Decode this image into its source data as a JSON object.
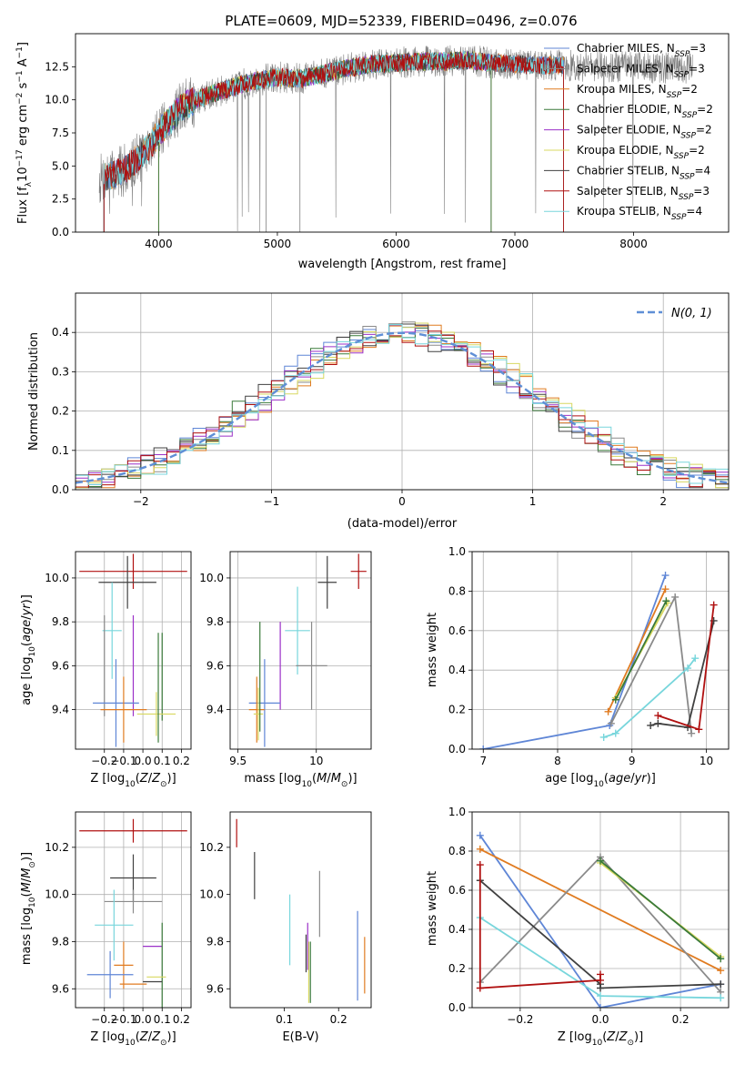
{
  "figure_title": "PLATE=0609, MJD=52339, FIBERID=0496, z=0.076",
  "colors": {
    "Chabrier MILES": "#5f86d6",
    "Salpeter MILES": "#8a8a8a",
    "Kroupa MILES": "#e07b20",
    "Chabrier ELODIE": "#3a7a3a",
    "Salpeter ELODIE": "#9b30c8",
    "Kroupa ELODIE": "#d8d860",
    "Chabrier STELIB": "#404040",
    "Salpeter STELIB": "#b01010",
    "Kroupa STELIB": "#78d6dc"
  },
  "chart_data": [
    {
      "id": "spectrum",
      "type": "line",
      "title": "PLATE=0609, MJD=52339, FIBERID=0496, z=0.076",
      "xlabel": "wavelength [Angstrom, rest frame]",
      "ylabel": "Flux [f_λ 10^-17 erg cm^-2 s^-1 A^-1]",
      "xlim": [
        3300,
        8800
      ],
      "ylim": [
        0,
        15
      ],
      "xticks": [
        4000,
        5000,
        6000,
        7000,
        8000
      ],
      "yticks": [
        0.0,
        2.5,
        5.0,
        7.5,
        10.0,
        12.5
      ],
      "legend": "right",
      "legend_entries": [
        {
          "base": "Chabrier MILES, N",
          "sub": "SSP",
          "tail": "=3"
        },
        {
          "base": "Salpeter MILES, N",
          "sub": "SSP",
          "tail": "=3"
        },
        {
          "base": "Kroupa MILES, N",
          "sub": "SSP",
          "tail": "=2"
        },
        {
          "base": "Chabrier ELODIE, N",
          "sub": "SSP",
          "tail": "=2"
        },
        {
          "base": "Salpeter ELODIE, N",
          "sub": "SSP",
          "tail": "=2"
        },
        {
          "base": "Kroupa ELODIE, N",
          "sub": "SSP",
          "tail": "=2"
        },
        {
          "base": "Chabrier STELIB, N",
          "sub": "SSP",
          "tail": "=4"
        },
        {
          "base": "Salpeter STELIB, N",
          "sub": "SSP",
          "tail": "=3"
        },
        {
          "base": "Kroupa STELIB, N",
          "sub": "SSP",
          "tail": "=4"
        }
      ],
      "continuum": {
        "wavelength": [
          3500,
          3700,
          3900,
          4000,
          4200,
          4400,
          4600,
          4800,
          5000,
          5200,
          5400,
          5600,
          5800,
          6000,
          6200,
          6400,
          6600,
          6800,
          7000,
          7200,
          7400
        ],
        "flux": [
          4.0,
          4.6,
          6.2,
          7.5,
          9.5,
          10.3,
          10.9,
          11.4,
          11.7,
          11.6,
          12.0,
          12.4,
          12.7,
          12.8,
          12.9,
          12.9,
          13.0,
          12.8,
          12.7,
          12.6,
          12.6
        ]
      },
      "data_extent": [
        3500,
        8500
      ],
      "model_extents": {
        "Chabrier MILES": [
          3540,
          7410
        ],
        "Salpeter MILES": [
          3540,
          7410
        ],
        "Kroupa MILES": [
          3540,
          7410
        ],
        "Salpeter STELIB": [
          3540,
          7410
        ],
        "Kroupa STELIB": [
          3540,
          7410
        ],
        "Chabrier ELODIE": [
          4000,
          6800
        ],
        "Salpeter ELODIE": [
          4000,
          6800
        ],
        "Kroupa ELODIE": [
          4000,
          6800
        ],
        "Chabrier STELIB": [
          3540,
          7410
        ]
      }
    },
    {
      "id": "residuals",
      "type": "line",
      "xlabel": "(data-model)/error",
      "ylabel": "Normed distribution",
      "xlim": [
        -2.5,
        2.5
      ],
      "ylim": [
        0,
        0.5
      ],
      "xticks": [
        -2,
        -1,
        0,
        1,
        2
      ],
      "xtick_labels": [
        "−2",
        "−1",
        "0",
        "1",
        "2"
      ],
      "yticks": [
        0.0,
        0.1,
        0.2,
        0.3,
        0.4
      ],
      "grid": true,
      "legend": "top-right",
      "gaussian_label": "N(0, 1)",
      "bin_width": 0.1
    },
    {
      "id": "age-vs-z",
      "type": "scatter",
      "xlabel": "Z [log10(Z/Z⊙)]",
      "ylabel": "age [log10(age/yr)]",
      "xlim": [
        -0.35,
        0.25
      ],
      "ylim": [
        9.22,
        10.12
      ],
      "xticks": [
        -0.2,
        -0.1,
        0.0,
        0.1,
        0.2
      ],
      "xtick_labels": [
        "−0.2",
        "−0.1",
        "0.0",
        "0.1",
        "0.2"
      ],
      "yticks": [
        9.4,
        9.6,
        9.8,
        10.0
      ],
      "grid": true,
      "points": [
        {
          "model": "Salpeter STELIB",
          "x": -0.05,
          "xerr": 0.28,
          "y": 10.03,
          "yerr": 0.08
        },
        {
          "model": "Chabrier STELIB",
          "x": -0.08,
          "xerr": 0.15,
          "y": 9.98,
          "yerr": 0.12
        },
        {
          "model": "Kroupa STELIB",
          "x": -0.16,
          "xerr": 0.05,
          "y": 9.76,
          "yerr": 0.22
        },
        {
          "model": "Chabrier ELODIE",
          "x": 0.1,
          "xerr": 0.0,
          "y": 9.55,
          "yerr": 0.2
        },
        {
          "model": "Kroupa ELODIE",
          "x": 0.07,
          "xerr": 0.1,
          "y": 9.38,
          "yerr": 0.1
        },
        {
          "model": "Salpeter MILES",
          "x": -0.2,
          "xerr": 0.0,
          "y": 9.6,
          "yerr": 0.23
        },
        {
          "model": "Salpeter ELODIE",
          "x": -0.05,
          "xerr": 0.0,
          "y": 9.6,
          "yerr": 0.23
        },
        {
          "model": "Chabrier MILES",
          "x": -0.14,
          "xerr": 0.12,
          "y": 9.43,
          "yerr": 0.2
        },
        {
          "model": "Kroupa MILES",
          "x": -0.1,
          "xerr": 0.12,
          "y": 9.4,
          "yerr": 0.15
        },
        {
          "model": "Chabrier ELODIE",
          "x": 0.08,
          "xerr": 0.0,
          "y": 9.5,
          "yerr": 0.25
        }
      ]
    },
    {
      "id": "age-vs-mass",
      "type": "scatter",
      "xlabel": "mass [log10(M/M⊙)]",
      "xlim": [
        9.45,
        10.35
      ],
      "ylim": [
        9.22,
        10.12
      ],
      "xticks": [
        9.5,
        10.0
      ],
      "yticks": [
        9.4,
        9.6,
        9.8,
        10.0
      ],
      "grid": true,
      "points": [
        {
          "model": "Salpeter STELIB",
          "x": 10.27,
          "xerr": 0.05,
          "y": 10.03,
          "yerr": 0.08
        },
        {
          "model": "Chabrier STELIB",
          "x": 10.07,
          "xerr": 0.06,
          "y": 9.98,
          "yerr": 0.12
        },
        {
          "model": "Kroupa STELIB",
          "x": 9.88,
          "xerr": 0.08,
          "y": 9.76,
          "yerr": 0.2
        },
        {
          "model": "Salpeter MILES",
          "x": 9.97,
          "xerr": 0.1,
          "y": 9.6,
          "yerr": 0.2
        },
        {
          "model": "Salpeter ELODIE",
          "x": 9.77,
          "xerr": 0.0,
          "y": 9.6,
          "yerr": 0.2
        },
        {
          "model": "Chabrier MILES",
          "x": 9.67,
          "xerr": 0.1,
          "y": 9.43,
          "yerr": 0.2
        },
        {
          "model": "Kroupa MILES",
          "x": 9.62,
          "xerr": 0.05,
          "y": 9.4,
          "yerr": 0.15
        },
        {
          "model": "Kroupa ELODIE",
          "x": 9.63,
          "xerr": 0.03,
          "y": 9.38,
          "yerr": 0.12
        },
        {
          "model": "Chabrier ELODIE",
          "x": 9.64,
          "xerr": 0.0,
          "y": 9.55,
          "yerr": 0.25
        }
      ]
    },
    {
      "id": "weight-vs-age",
      "type": "line",
      "xlabel": "age [log10(age/yr)]",
      "ylabel": "mass weight",
      "xlim": [
        6.85,
        10.3
      ],
      "ylim": [
        0,
        1.0
      ],
      "xticks": [
        7,
        8,
        9,
        10
      ],
      "yticks": [
        0.0,
        0.2,
        0.4,
        0.6,
        0.8,
        1.0
      ],
      "grid": true,
      "series": [
        {
          "model": "Chabrier MILES",
          "x": [
            7.0,
            8.7,
            9.45
          ],
          "y": [
            0.0,
            0.12,
            0.88
          ]
        },
        {
          "model": "Kroupa MILES",
          "x": [
            8.68,
            9.45
          ],
          "y": [
            0.19,
            0.81
          ]
        },
        {
          "model": "Kroupa ELODIE",
          "x": [
            8.78,
            9.48
          ],
          "y": [
            0.26,
            0.74
          ]
        },
        {
          "model": "Chabrier ELODIE",
          "x": [
            8.78,
            9.46
          ],
          "y": [
            0.25,
            0.75
          ]
        },
        {
          "model": "Salpeter MILES",
          "x": [
            8.72,
            9.58,
            9.8
          ],
          "y": [
            0.13,
            0.77,
            0.08
          ]
        },
        {
          "model": "Kroupa STELIB",
          "x": [
            8.62,
            8.78,
            9.75,
            9.85
          ],
          "y": [
            0.06,
            0.08,
            0.41,
            0.46
          ]
        },
        {
          "model": "Chabrier STELIB",
          "x": [
            9.25,
            9.35,
            9.75,
            10.1
          ],
          "y": [
            0.12,
            0.13,
            0.11,
            0.65
          ]
        },
        {
          "model": "Salpeter STELIB",
          "x": [
            9.35,
            9.9,
            10.1
          ],
          "y": [
            0.17,
            0.1,
            0.73
          ]
        }
      ]
    },
    {
      "id": "mass-vs-z",
      "type": "scatter",
      "xlabel": "Z [log10(Z/Z⊙)]",
      "ylabel": "mass [log10(M/M⊙)]",
      "xlim": [
        -0.35,
        0.25
      ],
      "ylim": [
        9.52,
        10.35
      ],
      "xticks": [
        -0.2,
        -0.1,
        0.0,
        0.1,
        0.2
      ],
      "xtick_labels": [
        "−0.2",
        "−0.1",
        "0.0",
        "0.1",
        "0.2"
      ],
      "yticks": [
        9.6,
        9.8,
        10.0,
        10.2
      ],
      "grid": true,
      "points": [
        {
          "model": "Salpeter STELIB",
          "x": -0.05,
          "xerr": 0.28,
          "y": 10.27,
          "yerr": 0.05
        },
        {
          "model": "Chabrier STELIB",
          "x": -0.05,
          "xerr": 0.12,
          "y": 10.07,
          "yerr": 0.1
        },
        {
          "model": "Salpeter MILES",
          "x": -0.05,
          "xerr": 0.15,
          "y": 9.97,
          "yerr": 0.05
        },
        {
          "model": "Kroupa STELIB",
          "x": -0.15,
          "xerr": 0.1,
          "y": 9.87,
          "yerr": 0.15
        },
        {
          "model": "Salpeter ELODIE",
          "x": 0.05,
          "xerr": 0.05,
          "y": 9.78,
          "yerr": 0.0
        },
        {
          "model": "Chabrier ELODIE",
          "x": 0.1,
          "xerr": 0.0,
          "y": 9.7,
          "yerr": 0.18
        },
        {
          "model": "Kroupa MILES",
          "x": -0.1,
          "xerr": 0.05,
          "y": 9.7,
          "yerr": 0.1
        },
        {
          "model": "Chabrier MILES",
          "x": -0.17,
          "xerr": 0.12,
          "y": 9.66,
          "yerr": 0.1
        },
        {
          "model": "Kroupa ELODIE",
          "x": 0.07,
          "xerr": 0.05,
          "y": 9.65,
          "yerr": 0.0
        },
        {
          "model": "Kroupa MILES",
          "x": -0.05,
          "xerr": 0.07,
          "y": 9.62,
          "yerr": 0.0
        },
        {
          "model": "Chabrier STELIB",
          "x": 0.05,
          "xerr": 0.05,
          "y": 9.63,
          "yerr": 0.0
        }
      ]
    },
    {
      "id": "mass-vs-ebv",
      "type": "scatter",
      "xlabel": "E(B-V)",
      "xlim": [
        0.0,
        0.26
      ],
      "ylim": [
        9.52,
        10.35
      ],
      "xticks": [
        0.1,
        0.2
      ],
      "yticks": [
        9.6,
        9.8,
        10.0,
        10.2
      ],
      "grid": false,
      "points": [
        {
          "model": "Salpeter STELIB",
          "x": 0.012,
          "xerr": 0.0,
          "y": 10.26,
          "yerr": 0.06
        },
        {
          "model": "Chabrier STELIB",
          "x": 0.045,
          "xerr": 0.0,
          "y": 10.08,
          "yerr": 0.1
        },
        {
          "model": "Kroupa STELIB",
          "x": 0.11,
          "xerr": 0.0,
          "y": 9.85,
          "yerr": 0.15
        },
        {
          "model": "Salpeter MILES",
          "x": 0.165,
          "xerr": 0.0,
          "y": 9.96,
          "yerr": 0.14
        },
        {
          "model": "Salpeter ELODIE",
          "x": 0.143,
          "xerr": 0.0,
          "y": 9.78,
          "yerr": 0.1
        },
        {
          "model": "Chabrier STELIB",
          "x": 0.14,
          "xerr": 0.0,
          "y": 9.75,
          "yerr": 0.08
        },
        {
          "model": "Kroupa ELODIE",
          "x": 0.145,
          "xerr": 0.0,
          "y": 9.67,
          "yerr": 0.13
        },
        {
          "model": "Chabrier ELODIE",
          "x": 0.148,
          "xerr": 0.0,
          "y": 9.67,
          "yerr": 0.13
        },
        {
          "model": "Chabrier MILES",
          "x": 0.235,
          "xerr": 0.0,
          "y": 9.74,
          "yerr": 0.19
        },
        {
          "model": "Kroupa MILES",
          "x": 0.248,
          "xerr": 0.0,
          "y": 9.7,
          "yerr": 0.12
        }
      ]
    },
    {
      "id": "weight-vs-z",
      "type": "line",
      "xlabel": "Z [log10(Z/Z⊙)]",
      "ylabel": "mass weight",
      "xlim": [
        -0.32,
        0.32
      ],
      "ylim": [
        0,
        1.0
      ],
      "xticks": [
        -0.2,
        0.0,
        0.2
      ],
      "xtick_labels": [
        "−0.2",
        "0.0",
        "0.2"
      ],
      "yticks": [
        0.0,
        0.2,
        0.4,
        0.6,
        0.8,
        1.0
      ],
      "grid": true,
      "series": [
        {
          "model": "Chabrier MILES",
          "x": [
            -0.3,
            0.0,
            0.3
          ],
          "y": [
            0.88,
            0.0,
            0.12
          ]
        },
        {
          "model": "Kroupa MILES",
          "x": [
            -0.3,
            0.3
          ],
          "y": [
            0.81,
            0.19
          ]
        },
        {
          "model": "Salpeter MILES",
          "x": [
            -0.3,
            0.0,
            0.3
          ],
          "y": [
            0.13,
            0.77,
            0.08
          ]
        },
        {
          "model": "Kroupa ELODIE",
          "x": [
            0.0,
            0.3
          ],
          "y": [
            0.74,
            0.26
          ]
        },
        {
          "model": "Chabrier ELODIE",
          "x": [
            0.0,
            0.3
          ],
          "y": [
            0.75,
            0.25
          ]
        },
        {
          "model": "Kroupa STELIB",
          "x": [
            -0.3,
            0.0,
            0.3
          ],
          "y": [
            0.46,
            0.06,
            0.05
          ]
        },
        {
          "model": "Chabrier STELIB",
          "x": [
            -0.3,
            0.0,
            0.0,
            0.3
          ],
          "y": [
            0.65,
            0.12,
            0.1,
            0.12
          ]
        },
        {
          "model": "Salpeter STELIB",
          "x": [
            -0.3,
            -0.3,
            0.0,
            0.0
          ],
          "y": [
            0.73,
            0.1,
            0.14,
            0.17
          ]
        }
      ]
    }
  ]
}
